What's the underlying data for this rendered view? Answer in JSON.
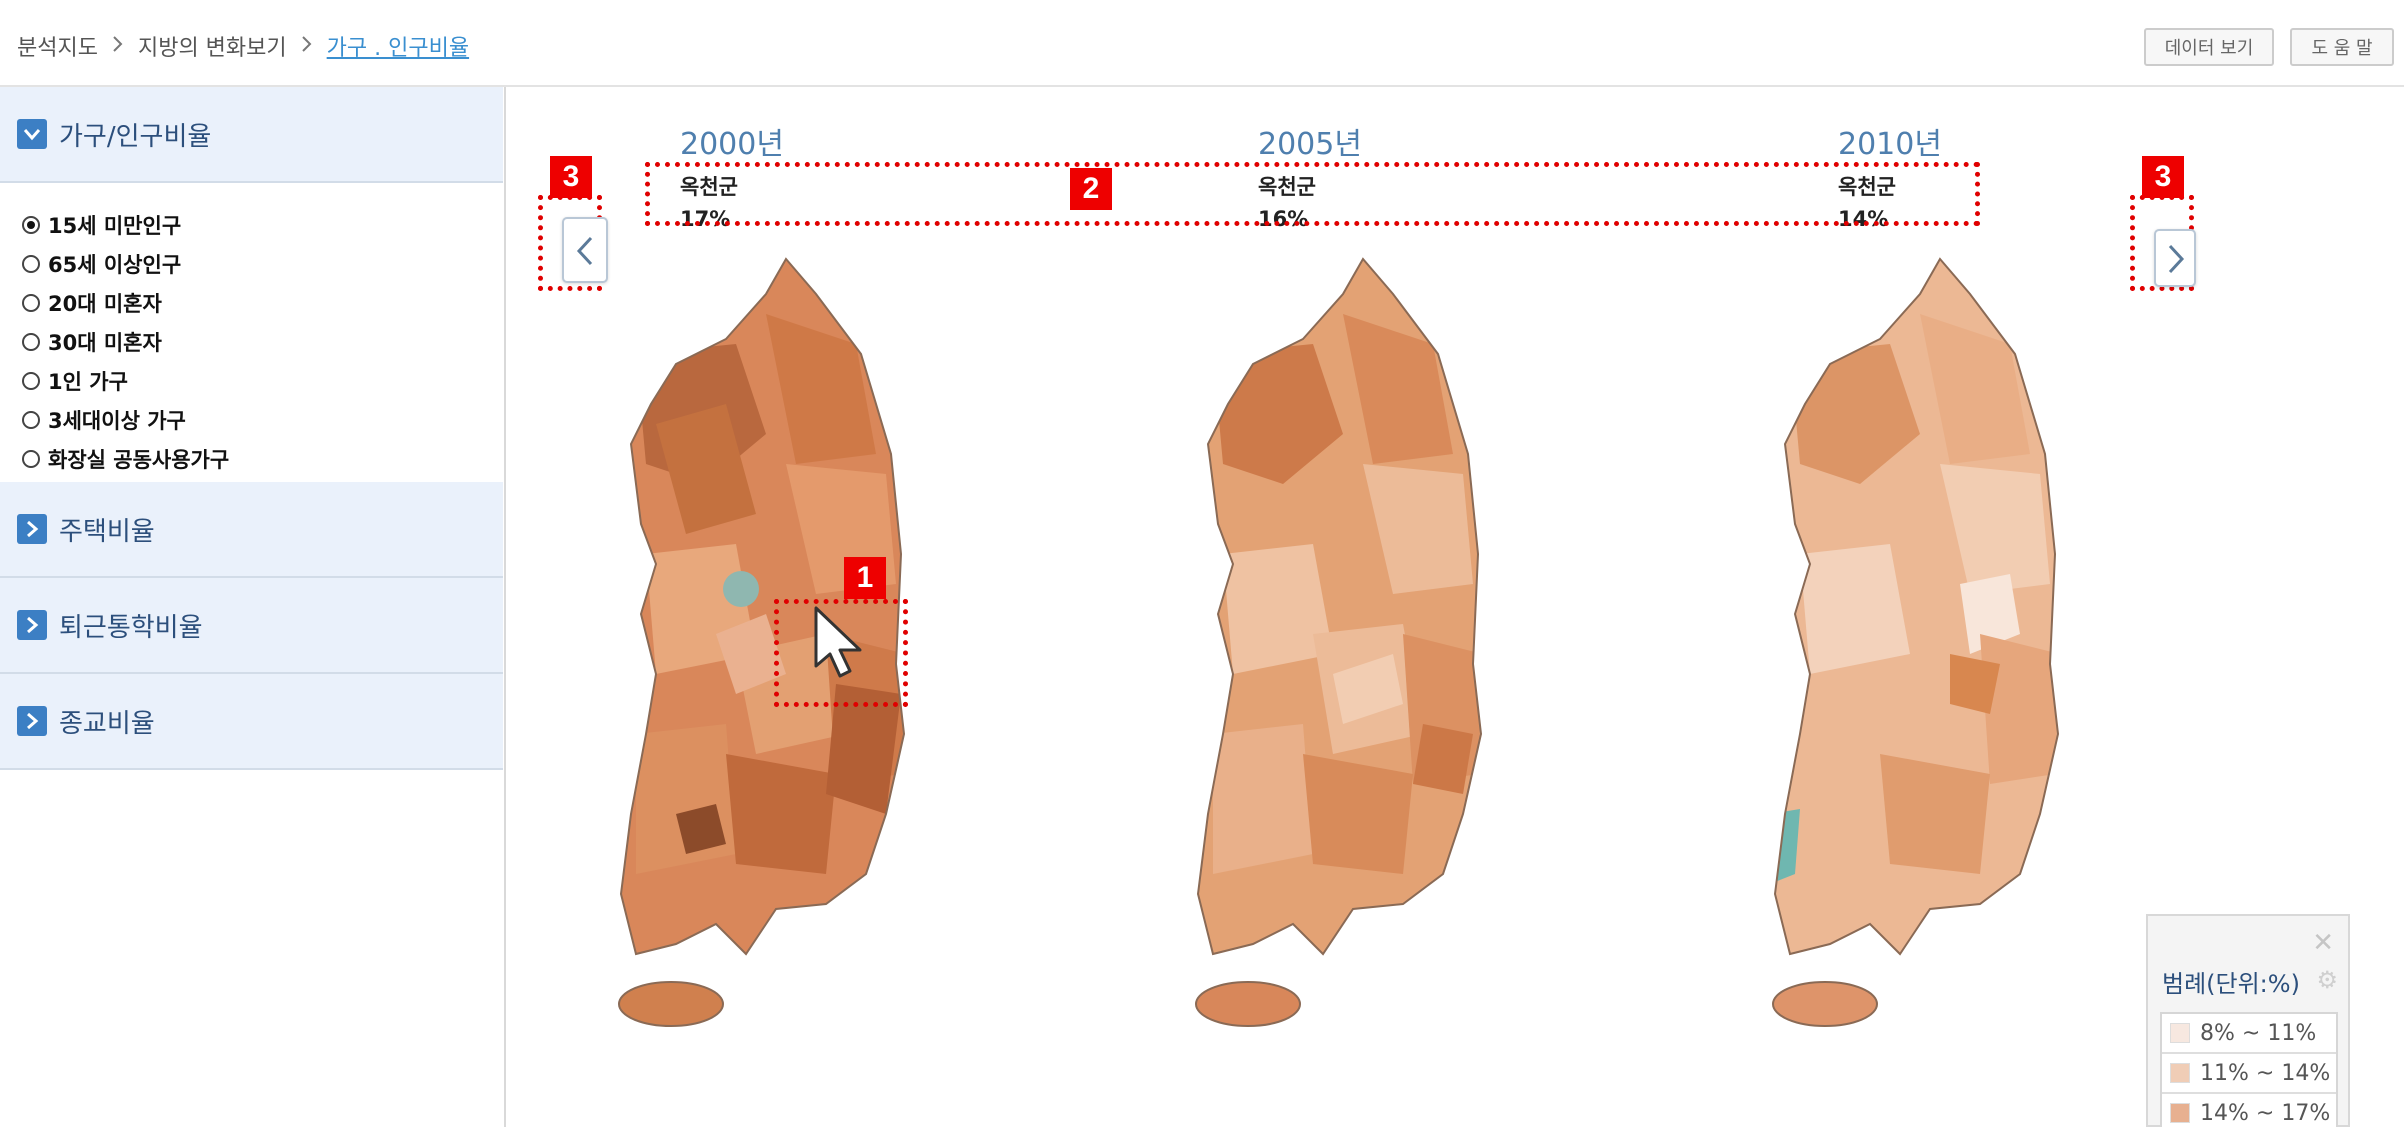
{
  "breadcrumb": [
    "분석지도",
    "지방의 변화보기",
    "가구 . 인구비율"
  ],
  "top_buttons": {
    "data_view": "데이터 보기",
    "help": "도 움 말"
  },
  "sidebar": {
    "sections": [
      {
        "label": "가구/인구비율",
        "expanded": true
      },
      {
        "label": "주택비율",
        "expanded": false
      },
      {
        "label": "퇴근통학비율",
        "expanded": false
      },
      {
        "label": "종교비율",
        "expanded": false
      }
    ],
    "radio_items": [
      {
        "label": "15세 미만인구",
        "selected": true
      },
      {
        "label": "65세 이상인구",
        "selected": false
      },
      {
        "label": "20대 미혼자",
        "selected": false
      },
      {
        "label": "30대 미혼자",
        "selected": false
      },
      {
        "label": "1인 가구",
        "selected": false
      },
      {
        "label": "3세대이상 가구",
        "selected": false
      },
      {
        "label": "화장실 공동사용가구",
        "selected": false
      }
    ]
  },
  "panels": [
    {
      "year": "2000년",
      "region": "옥천군",
      "value": "17%",
      "tone": "dark"
    },
    {
      "year": "2005년",
      "region": "옥천군",
      "value": "16%",
      "tone": "mid"
    },
    {
      "year": "2010년",
      "region": "옥천군",
      "value": "14%",
      "tone": "light"
    }
  ],
  "annotations": {
    "badge_hover": "1",
    "badge_info": "2",
    "badge_nav": "3"
  },
  "legend": {
    "title": "범례(단위:%)",
    "items": [
      {
        "label": "8% ~ 11%",
        "color": "#f7e8e0"
      },
      {
        "label": "11% ~ 14%",
        "color": "#f0cdb6"
      },
      {
        "label": "14% ~ 17%",
        "color": "#e7b090"
      }
    ]
  },
  "icons": {
    "nav_prev": "chevron-left-icon",
    "nav_next": "chevron-right-icon",
    "close": "close-icon",
    "settings": "gear-icon",
    "cursor": "mouse-cursor-icon"
  },
  "colors": {
    "accent": "#3c7fc4",
    "highlight": "#e00000",
    "map_dark": "#c8693a",
    "map_mid": "#dc8f5e",
    "map_light": "#eeb896"
  }
}
